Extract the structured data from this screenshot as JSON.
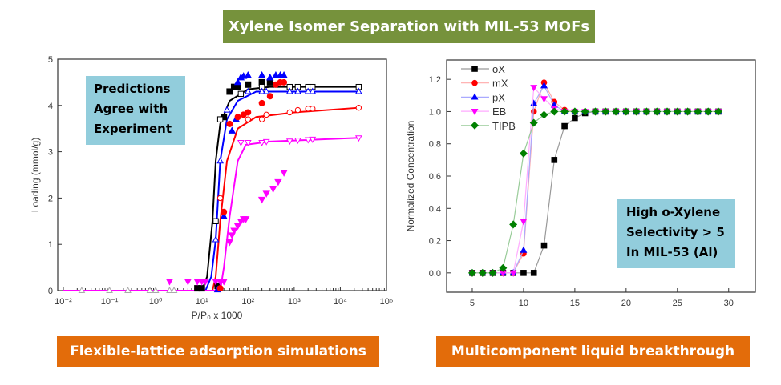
{
  "title": "Xylene Isomer Separation with MIL-53 MOFs",
  "left_label": "Flexible-lattice adsorption simulations",
  "right_label": "Multicomponent liquid breakthrough",
  "left_note": [
    "Predictions",
    "Agree with",
    "Experiment"
  ],
  "right_note": [
    "High o-Xylene",
    "Selectivity > 5",
    "In MIL-53 (Al)"
  ],
  "chart_data": [
    {
      "type": "line",
      "xscale": "log",
      "xlim": [
        0.01,
        100000
      ],
      "ylim": [
        0,
        5
      ],
      "xlabel": "P/P₀ x 1000",
      "ylabel": "Loading (mmol/g)",
      "xticks": [
        "10⁻²",
        "10⁻¹",
        "10⁰",
        "10¹",
        "10²",
        "10³",
        "10⁴",
        "10⁵"
      ],
      "yticks": [
        "0",
        "1",
        "2",
        "3",
        "4",
        "5"
      ],
      "colors": {
        "black": "#000000",
        "blue": "#0000ff",
        "red": "#ff0000",
        "magenta": "#ff00ff"
      },
      "lines": [
        {
          "color": "black",
          "x": [
            0.01,
            10,
            13,
            17,
            20,
            25,
            40,
            100,
            300,
            25000
          ],
          "y": [
            0,
            0,
            0.3,
            1.5,
            2.8,
            3.6,
            4.1,
            4.35,
            4.4,
            4.4
          ]
        },
        {
          "color": "blue",
          "x": [
            0.01,
            12,
            16,
            20,
            25,
            35,
            60,
            150,
            25000
          ],
          "y": [
            0,
            0,
            0.3,
            1.1,
            2.8,
            3.7,
            4.1,
            4.3,
            4.3
          ]
        },
        {
          "color": "red",
          "x": [
            0.01,
            17,
            20,
            25,
            35,
            60,
            150,
            1000,
            25000
          ],
          "y": [
            0,
            0,
            0.3,
            1.5,
            2.8,
            3.5,
            3.75,
            3.85,
            3.95
          ]
        },
        {
          "color": "magenta",
          "x": [
            0.01,
            25,
            30,
            40,
            60,
            90,
            300,
            25000
          ],
          "y": [
            0,
            0,
            0.5,
            1.6,
            2.8,
            3.15,
            3.22,
            3.3
          ]
        }
      ],
      "points": [
        {
          "color": "black",
          "marker": "square",
          "filled": true,
          "x": [
            8,
            10,
            22,
            30,
            40,
            50,
            60,
            100,
            200,
            300
          ],
          "y": [
            0.05,
            0.05,
            0.1,
            3.75,
            4.3,
            4.4,
            4.4,
            4.45,
            4.5,
            4.5
          ]
        },
        {
          "color": "blue",
          "marker": "triangle",
          "filled": true,
          "x": [
            22,
            30,
            45,
            55,
            60,
            70,
            80,
            100,
            200,
            300,
            400,
            500,
            600
          ],
          "y": [
            0.02,
            1.6,
            3.45,
            3.7,
            4.5,
            4.6,
            4.63,
            4.65,
            4.65,
            4.6,
            4.65,
            4.65,
            4.65
          ]
        },
        {
          "color": "red",
          "marker": "circle",
          "filled": true,
          "x": [
            25,
            30,
            40,
            60,
            80,
            100,
            200,
            300,
            400,
            500,
            600
          ],
          "y": [
            0.05,
            1.7,
            3.6,
            3.75,
            3.8,
            3.85,
            4.05,
            4.2,
            4.45,
            4.5,
            4.5
          ]
        },
        {
          "color": "magenta",
          "marker": "triangle-down",
          "filled": true,
          "x": [
            2,
            5,
            8,
            10,
            12,
            20,
            25,
            30,
            40,
            45,
            50,
            60,
            70,
            80,
            90,
            200,
            250,
            350,
            450,
            600
          ],
          "y": [
            0.2,
            0.2,
            0.2,
            0.2,
            0.2,
            0.2,
            0.2,
            0.2,
            1.05,
            1.2,
            1.3,
            1.4,
            1.5,
            1.55,
            1.55,
            1.97,
            2.1,
            2.2,
            2.35,
            2.55
          ]
        },
        {
          "color": "black",
          "marker": "square",
          "filled": false,
          "x": [
            20,
            25,
            70,
            200,
            800,
            1200,
            2000,
            2500,
            25000
          ],
          "y": [
            1.5,
            3.7,
            4.25,
            4.4,
            4.4,
            4.4,
            4.4,
            4.4,
            4.4
          ]
        },
        {
          "color": "blue",
          "marker": "triangle",
          "filled": false,
          "x": [
            0.025,
            0.1,
            0.25,
            0.75,
            1,
            2,
            2.5,
            20,
            25,
            35,
            100,
            200,
            250,
            800,
            1200,
            2000,
            2500,
            25000
          ],
          "y": [
            0,
            0,
            0,
            0,
            0,
            0,
            0,
            1.1,
            2.8,
            3.9,
            4.3,
            4.3,
            4.3,
            4.3,
            4.3,
            4.3,
            4.3,
            4.3
          ]
        },
        {
          "color": "red",
          "marker": "circle",
          "filled": false,
          "x": [
            25,
            100,
            200,
            250,
            800,
            1200,
            2000,
            2500,
            25000
          ],
          "y": [
            2.0,
            3.7,
            3.7,
            3.8,
            3.85,
            3.9,
            3.93,
            3.93,
            3.95
          ]
        },
        {
          "color": "magenta",
          "marker": "triangle-down",
          "filled": false,
          "x": [
            70,
            100,
            200,
            250,
            800,
            1200,
            2000,
            2500,
            25000
          ],
          "y": [
            3.2,
            3.2,
            3.2,
            3.22,
            3.23,
            3.25,
            3.26,
            3.27,
            3.3
          ]
        }
      ]
    },
    {
      "type": "line",
      "xlim": [
        2.5,
        32.6
      ],
      "ylim": [
        -0.12,
        1.32
      ],
      "xlabel": "",
      "ylabel": "Normalized Concentration",
      "xticks": [
        5,
        10,
        15,
        20,
        25,
        30
      ],
      "yticks": [
        "0.0",
        "0.2",
        "0.4",
        "0.6",
        "0.8",
        "1.0",
        "1.2"
      ],
      "legend": "top-left",
      "x": [
        5,
        6,
        7,
        8,
        9,
        10,
        11,
        12,
        13,
        14,
        15,
        16,
        17,
        18,
        19,
        20,
        21,
        22,
        23,
        24,
        25,
        26,
        27,
        28,
        29
      ],
      "series": [
        {
          "name": "oX",
          "color": "#000000",
          "line": "#999999",
          "marker": "square",
          "values": [
            0,
            0,
            0,
            0,
            0,
            0,
            0,
            0.17,
            0.7,
            0.91,
            0.96,
            0.99,
            1,
            1,
            1,
            1,
            1,
            1,
            1,
            1,
            1,
            1,
            1,
            1,
            1
          ]
        },
        {
          "name": "mX",
          "color": "#ff0000",
          "line": "#ffaaaa",
          "marker": "circle",
          "values": [
            0,
            0,
            0,
            0,
            0,
            0.12,
            1.0,
            1.18,
            1.06,
            1.01,
            1,
            1,
            1,
            1,
            1,
            1,
            1,
            1,
            1,
            1,
            1,
            1,
            1,
            1,
            1
          ]
        },
        {
          "name": "pX",
          "color": "#0000ff",
          "line": "#aaaaff",
          "marker": "triangle",
          "values": [
            0,
            0,
            0,
            0,
            0,
            0.14,
            1.05,
            1.16,
            1.04,
            1.0,
            1,
            1,
            1,
            1,
            1,
            1,
            1,
            1,
            1,
            1,
            1,
            1,
            1,
            1,
            1
          ]
        },
        {
          "name": "EB",
          "color": "#ff00ff",
          "line": "#ffaaff",
          "marker": "triangle-down",
          "values": [
            0,
            0,
            0,
            0,
            0,
            0.32,
            1.15,
            1.08,
            1.02,
            1.0,
            1,
            1,
            1,
            1,
            1,
            1,
            1,
            1,
            1,
            1,
            1,
            1,
            1,
            1,
            1
          ]
        },
        {
          "name": "TIPB",
          "color": "#008000",
          "line": "#99cc99",
          "marker": "diamond",
          "values": [
            0,
            0,
            0,
            0.03,
            0.3,
            0.74,
            0.93,
            0.98,
            1.0,
            1.0,
            1,
            1,
            1,
            1,
            1,
            1,
            1,
            1,
            1,
            1,
            1,
            1,
            1,
            1,
            1
          ]
        }
      ]
    }
  ]
}
